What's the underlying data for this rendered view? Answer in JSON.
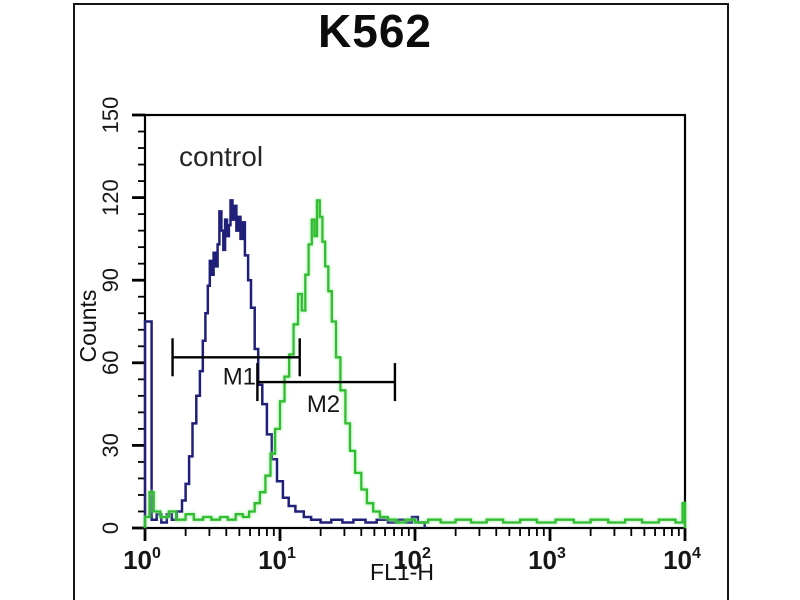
{
  "figure": {
    "title": "K562"
  },
  "chart_data": {
    "type": "line",
    "subtype": "flow-cytometry-histogram-overlay",
    "title": "K562",
    "xlabel": "FL1-H",
    "ylabel": "Counts",
    "annotation": "control",
    "x_scale": "log",
    "xlim": [
      1,
      10000
    ],
    "ylim": [
      0,
      150
    ],
    "grid": false,
    "legend": "none",
    "y_ticks": [
      0,
      30,
      60,
      90,
      120,
      150
    ],
    "y_minor_step": 6,
    "x_ticks": [
      {
        "base": "10",
        "exp": "0"
      },
      {
        "base": "10",
        "exp": "1"
      },
      {
        "base": "10",
        "exp": "2"
      },
      {
        "base": "10",
        "exp": "3"
      },
      {
        "base": "10",
        "exp": "4"
      }
    ],
    "colors": {
      "axis": "#000000",
      "text": "#161616",
      "navy": "#20207a",
      "green": "#2fbe2f",
      "green_glow": "#98e698"
    },
    "series": [
      {
        "data_name": "navy-control-histogram",
        "color": "#20207a",
        "width": 2.5,
        "glow": false,
        "points": [
          [
            1.0,
            75
          ],
          [
            1.12,
            3
          ],
          [
            1.22,
            5
          ],
          [
            1.32,
            2
          ],
          [
            1.45,
            5
          ],
          [
            1.58,
            3
          ],
          [
            1.72,
            6
          ],
          [
            1.88,
            10
          ],
          [
            2.0,
            16
          ],
          [
            2.12,
            26
          ],
          [
            2.25,
            38
          ],
          [
            2.4,
            48
          ],
          [
            2.55,
            57
          ],
          [
            2.68,
            68
          ],
          [
            2.8,
            78
          ],
          [
            2.92,
            88
          ],
          [
            3.02,
            97
          ],
          [
            3.12,
            92
          ],
          [
            3.22,
            100
          ],
          [
            3.34,
            95
          ],
          [
            3.45,
            103
          ],
          [
            3.56,
            115
          ],
          [
            3.68,
            108
          ],
          [
            3.8,
            101
          ],
          [
            3.92,
            112
          ],
          [
            4.05,
            106
          ],
          [
            4.18,
            110
          ],
          [
            4.3,
            119
          ],
          [
            4.45,
            112
          ],
          [
            4.6,
            117
          ],
          [
            4.75,
            108
          ],
          [
            4.9,
            113
          ],
          [
            5.1,
            105
          ],
          [
            5.3,
            111
          ],
          [
            5.5,
            99
          ],
          [
            5.8,
            90
          ],
          [
            6.1,
            80
          ],
          [
            6.5,
            65
          ],
          [
            6.9,
            52
          ],
          [
            7.4,
            45
          ],
          [
            8.0,
            34
          ],
          [
            8.7,
            25
          ],
          [
            9.5,
            17
          ],
          [
            10.5,
            11
          ],
          [
            11.6,
            8
          ],
          [
            13,
            6
          ],
          [
            15,
            4
          ],
          [
            17,
            3
          ],
          [
            20,
            2
          ],
          [
            24,
            3
          ],
          [
            29,
            2
          ],
          [
            35,
            3
          ],
          [
            43,
            2
          ],
          [
            52,
            3
          ],
          [
            63,
            2
          ],
          [
            75,
            3
          ],
          [
            85,
            2
          ],
          [
            95,
            4
          ],
          [
            105,
            2
          ],
          [
            118,
            1
          ]
        ]
      },
      {
        "data_name": "green-stained-histogram",
        "color": "#2fbe2f",
        "width": 2.3,
        "glow": true,
        "points": [
          [
            1.0,
            4
          ],
          [
            1.08,
            13
          ],
          [
            1.16,
            6
          ],
          [
            1.3,
            4
          ],
          [
            1.5,
            6
          ],
          [
            1.7,
            3
          ],
          [
            2.0,
            5
          ],
          [
            2.3,
            3
          ],
          [
            2.7,
            4
          ],
          [
            3.1,
            3
          ],
          [
            3.6,
            4
          ],
          [
            4.1,
            3
          ],
          [
            4.7,
            5
          ],
          [
            5.3,
            4
          ],
          [
            5.9,
            6
          ],
          [
            6.5,
            9
          ],
          [
            7.1,
            13
          ],
          [
            7.8,
            19
          ],
          [
            8.5,
            27
          ],
          [
            9.2,
            36
          ],
          [
            10.0,
            46
          ],
          [
            10.8,
            55
          ],
          [
            11.7,
            63
          ],
          [
            12.6,
            74
          ],
          [
            13.6,
            85
          ],
          [
            14.5,
            79
          ],
          [
            15.4,
            92
          ],
          [
            16.3,
            103
          ],
          [
            17.2,
            112
          ],
          [
            18.0,
            106
          ],
          [
            18.8,
            119
          ],
          [
            19.7,
            113
          ],
          [
            20.6,
            104
          ],
          [
            21.6,
            95
          ],
          [
            22.8,
            86
          ],
          [
            24.2,
            75
          ],
          [
            26,
            62
          ],
          [
            28,
            50
          ],
          [
            30.5,
            38
          ],
          [
            33,
            28
          ],
          [
            36,
            20
          ],
          [
            40,
            14
          ],
          [
            44,
            9
          ],
          [
            49,
            6
          ],
          [
            55,
            4
          ],
          [
            63,
            3
          ],
          [
            73,
            2
          ],
          [
            85,
            3
          ],
          [
            100,
            2
          ],
          [
            125,
            3
          ],
          [
            155,
            2
          ],
          [
            200,
            3
          ],
          [
            260,
            2
          ],
          [
            340,
            3
          ],
          [
            450,
            2
          ],
          [
            600,
            3
          ],
          [
            800,
            2
          ],
          [
            1100,
            3
          ],
          [
            1500,
            2
          ],
          [
            2000,
            3
          ],
          [
            2700,
            2
          ],
          [
            3600,
            3
          ],
          [
            4800,
            2
          ],
          [
            6400,
            3
          ],
          [
            8500,
            2
          ],
          [
            9600,
            9
          ],
          [
            10000,
            9
          ]
        ]
      }
    ],
    "markers": [
      {
        "label": "M1",
        "from": 1.6,
        "to": 14,
        "counts": 62,
        "label_x": 5.0,
        "label_counts": 55
      },
      {
        "label": "M2",
        "from": 6.8,
        "to": 71,
        "counts": 53,
        "label_x": 21,
        "label_counts": 45
      }
    ]
  }
}
